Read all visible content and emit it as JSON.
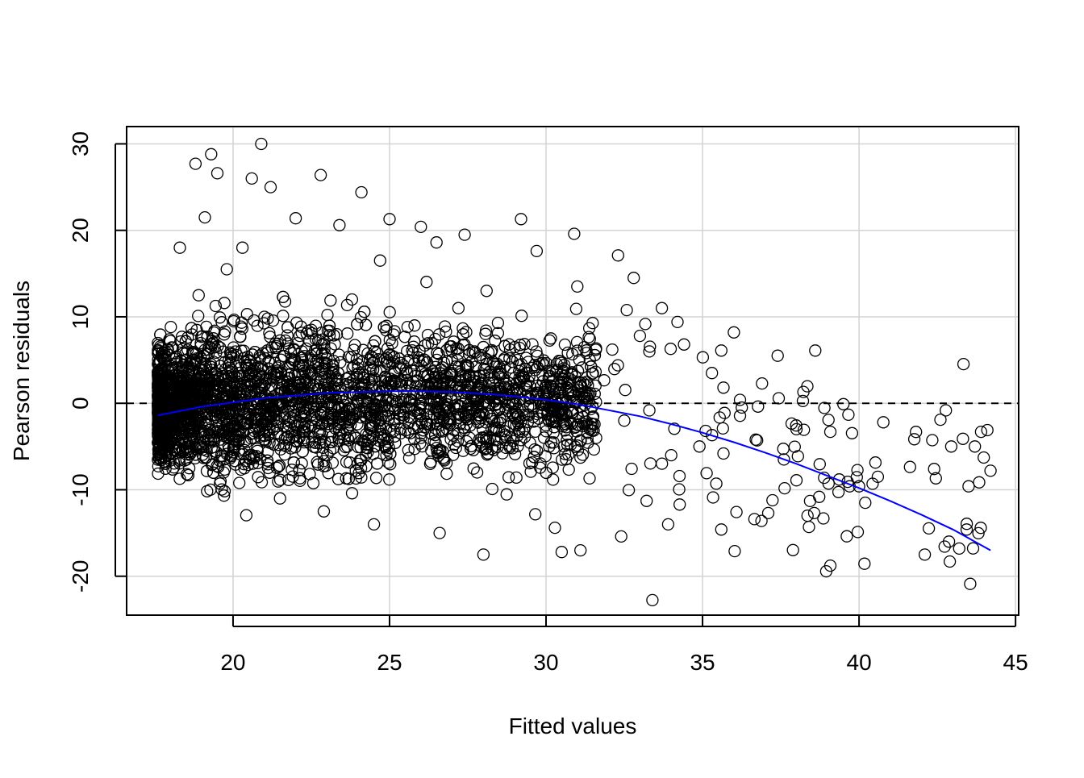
{
  "chart_data": {
    "type": "scatter",
    "title": "",
    "xlabel": "Fitted values",
    "ylabel": "Pearson residuals",
    "xlim": [
      16.6,
      45.1
    ],
    "ylim": [
      -24.5,
      32.0
    ],
    "x_ticks": [
      20,
      25,
      30,
      35,
      40,
      45
    ],
    "x_tick_labels": [
      "20",
      "25",
      "30",
      "35",
      "40",
      "45"
    ],
    "y_ticks": [
      -20,
      -10,
      0,
      10,
      20,
      30
    ],
    "y_tick_labels": [
      "-20",
      "-10",
      "0",
      "10",
      "20",
      "30"
    ],
    "grid": true,
    "reference_line": {
      "y": 0,
      "style": "dashed",
      "color": "#000000"
    },
    "colors": {
      "points": "#000000",
      "smooth": "#0000ff",
      "grid": "#d3d3d3"
    },
    "smooth_curve": {
      "x": [
        17.6,
        19.0,
        20.0,
        21.0,
        22.0,
        23.0,
        24.0,
        25.0,
        26.0,
        27.0,
        28.0,
        29.0,
        30.0,
        31.0,
        32.0,
        33.0,
        34.0,
        35.0,
        36.0,
        37.0,
        38.0,
        39.0,
        40.0,
        41.0,
        42.0,
        43.0,
        44.2
      ],
      "y": [
        -1.4,
        -0.4,
        0.1,
        0.6,
        0.9,
        1.2,
        1.3,
        1.4,
        1.4,
        1.3,
        1.1,
        0.8,
        0.4,
        -0.1,
        -0.8,
        -1.5,
        -2.4,
        -3.4,
        -4.5,
        -5.7,
        -7.0,
        -8.4,
        -9.8,
        -11.3,
        -12.9,
        -14.6,
        -17.0
      ]
    },
    "points_sampled": {
      "x": [
        18.8,
        19.3,
        19.5,
        20.9,
        20.6,
        19.1,
        22.8,
        22.0,
        21.2,
        24.1,
        23.4,
        25.0,
        24.7,
        20.3,
        19.8,
        18.3,
        18.9,
        26.0,
        26.5,
        27.4,
        28.1,
        29.2,
        29.7,
        30.9,
        31.0,
        32.3,
        32.8,
        33.7,
        34.2,
        35.6,
        36.0,
        37.4,
        38.6,
        39.5,
        40.2,
        40.6,
        42.4,
        42.6,
        43.9,
        44.1,
        44.2,
        43.7,
        43.5,
        42.9,
        42.1,
        39.7,
        38.4,
        38.0,
        37.1,
        36.7,
        35.6,
        33.9,
        32.4,
        31.1,
        30.5,
        28.0,
        26.6,
        24.5,
        22.9,
        21.5,
        19.6,
        18.6,
        17.8,
        17.8,
        18.0,
        18.4,
        19.0,
        19.7,
        20.5,
        21.3,
        22.2,
        23.1,
        24.0,
        24.9,
        25.6,
        26.3,
        27.0,
        27.8,
        28.5,
        29.3,
        30.1,
        30.8,
        31.6,
        32.5,
        33.3,
        34.0,
        34.9,
        35.3,
        36.9,
        38.0,
        40.0,
        43.2,
        21.0,
        22.5,
        23.8,
        25.8,
        27.2,
        29.0,
        31.4,
        33.0,
        35.1,
        37.6
      ],
      "y": [
        27.7,
        28.8,
        26.6,
        30.0,
        26.0,
        21.5,
        26.4,
        21.4,
        25.0,
        24.4,
        20.6,
        21.3,
        16.5,
        18.0,
        15.5,
        18.0,
        12.5,
        20.4,
        18.6,
        19.5,
        13.0,
        21.3,
        17.6,
        19.6,
        13.5,
        17.1,
        14.5,
        11.0,
        9.4,
        6.1,
        8.2,
        5.5,
        6.1,
        -0.1,
        -11.5,
        -8.5,
        -7.6,
        -1.9,
        -3.3,
        -3.1,
        -7.8,
        -5.0,
        -9.6,
        -18.3,
        -17.5,
        -9.6,
        -14.3,
        -8.9,
        -12.7,
        -4.2,
        -14.6,
        -14.0,
        -15.4,
        -17.0,
        -17.2,
        -17.5,
        -15.0,
        -14.0,
        -12.5,
        -11.0,
        -9.0,
        -7.5,
        -6.8,
        2.5,
        7.2,
        -5.5,
        3.0,
        -8.0,
        4.0,
        -3.0,
        6.0,
        -4.5,
        2.0,
        -6.0,
        5.0,
        -7.0,
        3.5,
        -8.0,
        0.5,
        -3.0,
        -5.0,
        1.0,
        -4.0,
        -2.0,
        6.0,
        -6.0,
        -5.0,
        3.5,
        2.3,
        -3.0,
        -9.6,
        -16.8,
        10.0,
        8.5,
        12.0,
        9.0,
        11.0,
        6.5,
        5.0,
        7.8,
        -3.2,
        -6.5
      ]
    },
    "note": "Dense point cloud (several thousand observations concentrated at fitted values 17.6-26 with residuals roughly -10 to 15) is rendered procedurally; listed points are representative outliers read from the figure."
  }
}
